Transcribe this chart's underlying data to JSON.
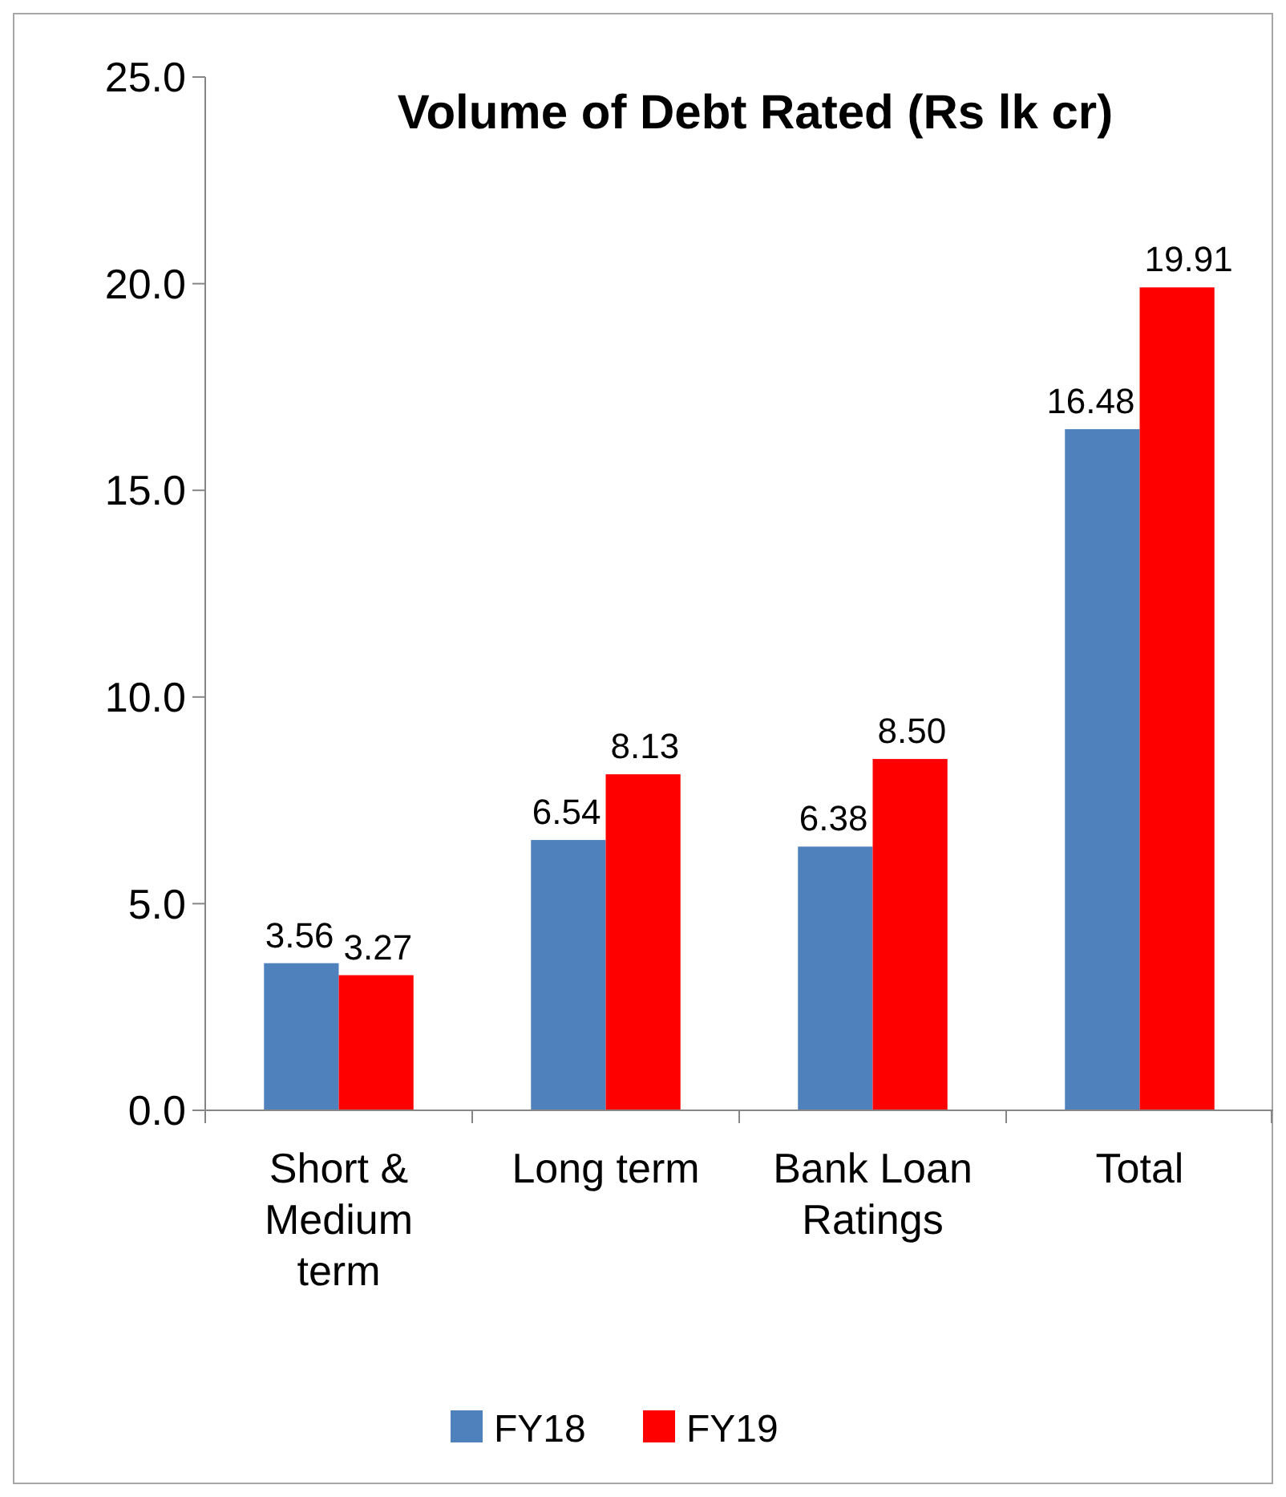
{
  "chart_data": {
    "type": "bar",
    "title": "Volume of Debt Rated (Rs lk cr)",
    "categories": [
      "Short & Medium term",
      "Long term",
      "Bank Loan Ratings",
      "Total"
    ],
    "series": [
      {
        "name": "FY18",
        "color": "#4f81bd",
        "values": [
          3.56,
          6.54,
          6.38,
          16.48
        ],
        "value_labels": [
          "3.56",
          "6.54",
          "6.38",
          "16.48"
        ]
      },
      {
        "name": "FY19",
        "color": "#ff0000",
        "values": [
          3.27,
          8.13,
          8.5,
          19.91
        ],
        "value_labels": [
          "3.27",
          "8.13",
          "8.50",
          "19.91"
        ]
      }
    ],
    "ylim": [
      0,
      25
    ],
    "yticks": [
      {
        "value": 0,
        "label": "0.0"
      },
      {
        "value": 5,
        "label": "5.0"
      },
      {
        "value": 10,
        "label": "10.0"
      },
      {
        "value": 15,
        "label": "15.0"
      },
      {
        "value": 20,
        "label": "20.0"
      },
      {
        "value": 25,
        "label": "25.0"
      }
    ],
    "legend": "bottom",
    "grid": false
  }
}
